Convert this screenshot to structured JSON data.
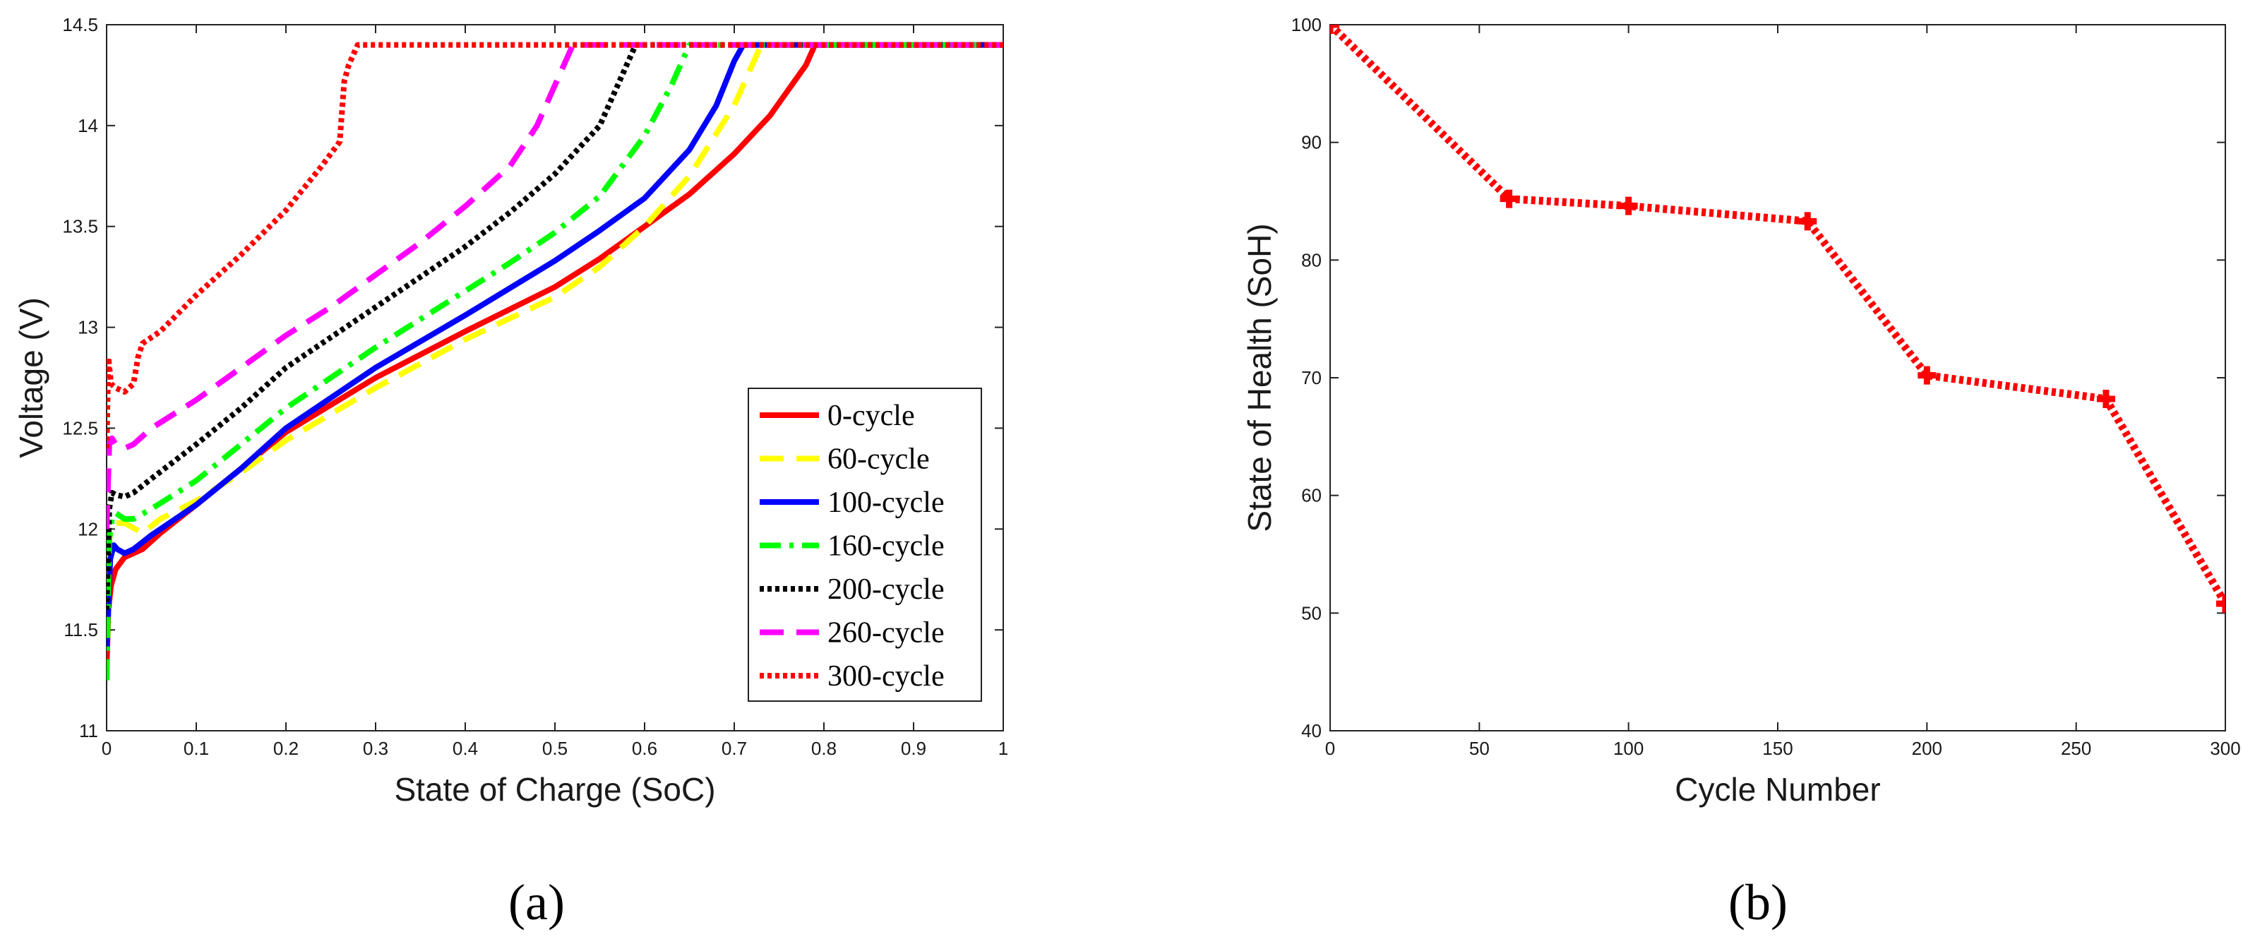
{
  "panels": {
    "a": "(a)",
    "b": "(b)"
  },
  "chart_data": [
    {
      "type": "line",
      "xlabel": "State of Charge (SoC)",
      "ylabel": "Voltage (V)",
      "xlim": [
        0,
        1
      ],
      "ylim": [
        11,
        14.5
      ],
      "xticks": [
        "0",
        "0.1",
        "0.2",
        "0.3",
        "0.4",
        "0.5",
        "0.6",
        "0.7",
        "0.8",
        "0.9",
        "1"
      ],
      "yticks": [
        "11",
        "11.5",
        "12",
        "12.5",
        "13",
        "13.5",
        "14",
        "14.5"
      ],
      "legend_position": "lower-right",
      "series": [
        {
          "name": "0-cycle",
          "color": "#ff0000",
          "dash": "solid",
          "x": [
            0,
            0.002,
            0.005,
            0.01,
            0.02,
            0.04,
            0.06,
            0.1,
            0.15,
            0.2,
            0.3,
            0.4,
            0.5,
            0.55,
            0.6,
            0.65,
            0.7,
            0.74,
            0.78,
            0.79,
            0.8,
            1.0
          ],
          "y": [
            11.3,
            11.6,
            11.72,
            11.8,
            11.86,
            11.9,
            11.98,
            12.12,
            12.3,
            12.48,
            12.75,
            12.98,
            13.2,
            13.34,
            13.5,
            13.66,
            13.86,
            14.05,
            14.3,
            14.4,
            14.4,
            14.4
          ]
        },
        {
          "name": "60-cycle",
          "color": "#ffff00",
          "dash": "dashed",
          "x": [
            0,
            0.003,
            0.006,
            0.01,
            0.02,
            0.04,
            0.06,
            0.1,
            0.15,
            0.2,
            0.3,
            0.4,
            0.5,
            0.55,
            0.6,
            0.65,
            0.7,
            0.72,
            0.73,
            0.74,
            1.0
          ],
          "y": [
            11.5,
            11.95,
            12.02,
            12.03,
            12.03,
            11.98,
            12.05,
            12.14,
            12.28,
            12.44,
            12.7,
            12.94,
            13.15,
            13.3,
            13.5,
            13.75,
            14.1,
            14.3,
            14.4,
            14.4,
            14.4
          ]
        },
        {
          "name": "100-cycle",
          "color": "#0000ff",
          "dash": "solid",
          "x": [
            0,
            0.004,
            0.008,
            0.012,
            0.02,
            0.03,
            0.05,
            0.1,
            0.15,
            0.2,
            0.3,
            0.4,
            0.5,
            0.55,
            0.6,
            0.65,
            0.68,
            0.7,
            0.71,
            1.0
          ],
          "y": [
            11.4,
            11.85,
            11.92,
            11.9,
            11.88,
            11.9,
            11.97,
            12.12,
            12.3,
            12.5,
            12.8,
            13.06,
            13.33,
            13.48,
            13.64,
            13.88,
            14.1,
            14.32,
            14.4,
            14.4
          ]
        },
        {
          "name": "160-cycle",
          "color": "#00ff00",
          "dash": "dashdot",
          "x": [
            0,
            0.003,
            0.006,
            0.01,
            0.02,
            0.03,
            0.05,
            0.1,
            0.15,
            0.2,
            0.3,
            0.4,
            0.45,
            0.5,
            0.55,
            0.6,
            0.63,
            0.65,
            1.0
          ],
          "y": [
            11.25,
            11.95,
            12.05,
            12.08,
            12.05,
            12.05,
            12.1,
            12.24,
            12.42,
            12.6,
            12.9,
            13.18,
            13.32,
            13.47,
            13.65,
            13.95,
            14.2,
            14.4,
            14.4
          ]
        },
        {
          "name": "200-cycle",
          "color": "#000000",
          "dash": "dotted",
          "x": [
            0,
            0.003,
            0.006,
            0.01,
            0.02,
            0.03,
            0.05,
            0.1,
            0.15,
            0.2,
            0.3,
            0.4,
            0.45,
            0.5,
            0.55,
            0.57,
            0.59,
            1.0
          ],
          "y": [
            11.6,
            12.1,
            12.18,
            12.17,
            12.16,
            12.18,
            12.25,
            12.42,
            12.6,
            12.8,
            13.1,
            13.4,
            13.57,
            13.76,
            14.0,
            14.2,
            14.4,
            14.4
          ]
        },
        {
          "name": "260-cycle",
          "color": "#ff00ff",
          "dash": "dashed",
          "x": [
            0,
            0.003,
            0.006,
            0.01,
            0.02,
            0.03,
            0.05,
            0.1,
            0.15,
            0.2,
            0.25,
            0.3,
            0.35,
            0.4,
            0.45,
            0.48,
            0.5,
            0.52,
            1.0
          ],
          "y": [
            12.0,
            12.42,
            12.45,
            12.42,
            12.4,
            12.42,
            12.5,
            12.64,
            12.8,
            12.96,
            13.1,
            13.26,
            13.42,
            13.6,
            13.8,
            14.0,
            14.2,
            14.4,
            14.4
          ]
        },
        {
          "name": "300-cycle",
          "color": "#ff0000",
          "dash": "dotted",
          "x": [
            0,
            0.002,
            0.005,
            0.01,
            0.02,
            0.03,
            0.035,
            0.04,
            0.06,
            0.08,
            0.1,
            0.15,
            0.2,
            0.24,
            0.26,
            0.265,
            0.27,
            0.28,
            1.0
          ],
          "y": [
            12.4,
            12.85,
            12.72,
            12.7,
            12.68,
            12.72,
            12.85,
            12.92,
            12.98,
            13.07,
            13.16,
            13.36,
            13.58,
            13.8,
            13.92,
            14.22,
            14.3,
            14.4,
            14.4
          ]
        }
      ]
    },
    {
      "type": "line",
      "xlabel": "Cycle Number",
      "ylabel": "State of Health (SoH)",
      "xlim": [
        0,
        300
      ],
      "ylim": [
        40,
        100
      ],
      "xticks": [
        "0",
        "50",
        "100",
        "150",
        "200",
        "250",
        "300"
      ],
      "yticks": [
        "40",
        "50",
        "60",
        "70",
        "80",
        "90",
        "100"
      ],
      "series": [
        {
          "name": "SoH",
          "color": "#ff0000",
          "dash": "dotted",
          "marker": "plus",
          "x": [
            0,
            60,
            100,
            160,
            200,
            260,
            300
          ],
          "y": [
            100,
            85.2,
            84.6,
            83.3,
            70.2,
            68.2,
            50.8
          ]
        }
      ]
    }
  ]
}
